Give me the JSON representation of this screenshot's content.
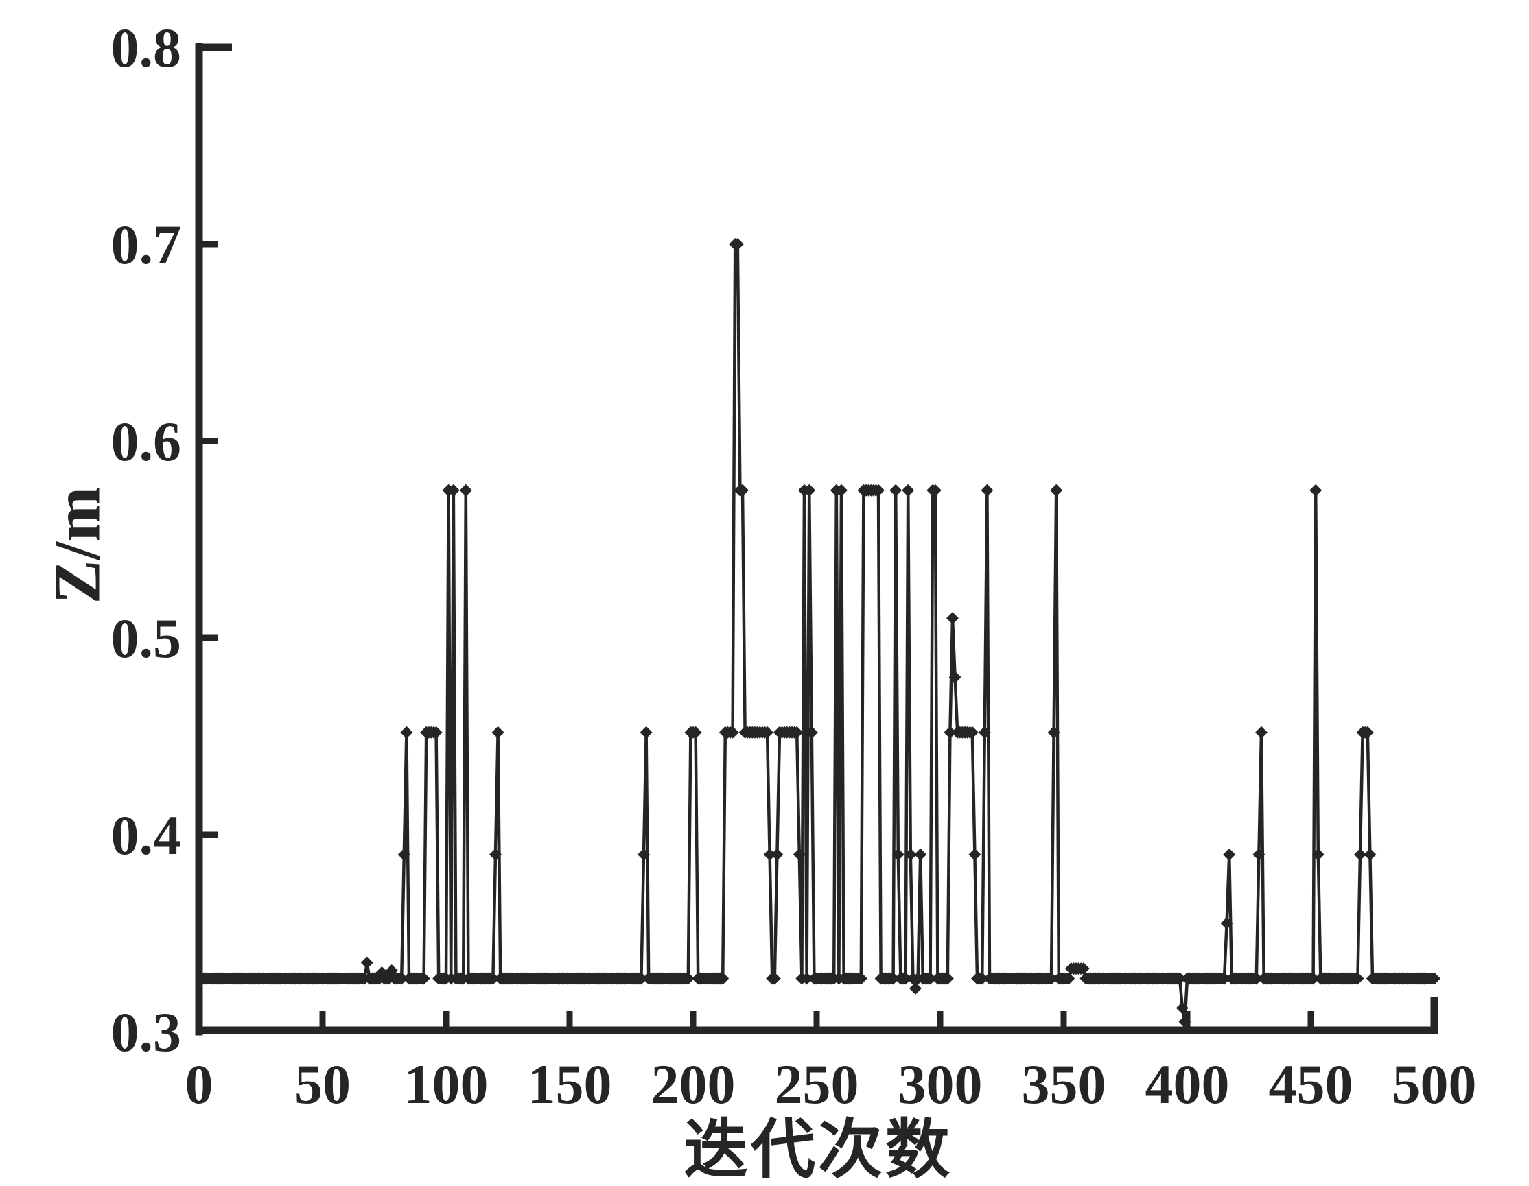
{
  "window": {
    "background": "#ffffff",
    "ink": "#252525"
  },
  "chart_data": {
    "type": "line",
    "title": "",
    "xlabel": "迭代次数",
    "ylabel": "Z/m",
    "xlim": [
      0,
      500
    ],
    "ylim": [
      0.3,
      0.8
    ],
    "xticks": [
      0,
      50,
      100,
      150,
      200,
      250,
      300,
      350,
      400,
      450,
      500
    ],
    "yticks": [
      0.3,
      0.4,
      0.5,
      0.6,
      0.7,
      0.8
    ],
    "grid": false,
    "legend": "none",
    "marker": "diamond",
    "line_color": "#252525",
    "x_start": 1,
    "x_end": 500,
    "baseline_value": 0.327,
    "segments": [
      {
        "from": 68,
        "to": 68,
        "value": 0.335
      },
      {
        "from": 74,
        "to": 74,
        "value": 0.33
      },
      {
        "from": 78,
        "to": 78,
        "value": 0.331
      },
      {
        "from": 83,
        "to": 83,
        "value": 0.39
      },
      {
        "from": 84,
        "to": 84,
        "value": 0.452
      },
      {
        "from": 92,
        "to": 96,
        "value": 0.452
      },
      {
        "from": 101,
        "to": 101,
        "value": 0.575
      },
      {
        "from": 103,
        "to": 103,
        "value": 0.575
      },
      {
        "from": 108,
        "to": 108,
        "value": 0.575
      },
      {
        "from": 120,
        "to": 120,
        "value": 0.39
      },
      {
        "from": 121,
        "to": 121,
        "value": 0.452
      },
      {
        "from": 180,
        "to": 180,
        "value": 0.39
      },
      {
        "from": 181,
        "to": 181,
        "value": 0.452
      },
      {
        "from": 199,
        "to": 201,
        "value": 0.452
      },
      {
        "from": 213,
        "to": 216,
        "value": 0.452
      },
      {
        "from": 217,
        "to": 218,
        "value": 0.7
      },
      {
        "from": 219,
        "to": 220,
        "value": 0.575
      },
      {
        "from": 221,
        "to": 230,
        "value": 0.452
      },
      {
        "from": 231,
        "to": 231,
        "value": 0.39
      },
      {
        "from": 234,
        "to": 234,
        "value": 0.39
      },
      {
        "from": 235,
        "to": 242,
        "value": 0.452
      },
      {
        "from": 243,
        "to": 243,
        "value": 0.39
      },
      {
        "from": 245,
        "to": 245,
        "value": 0.575
      },
      {
        "from": 247,
        "to": 247,
        "value": 0.575
      },
      {
        "from": 248,
        "to": 248,
        "value": 0.452
      },
      {
        "from": 258,
        "to": 258,
        "value": 0.575
      },
      {
        "from": 260,
        "to": 260,
        "value": 0.575
      },
      {
        "from": 269,
        "to": 275,
        "value": 0.575
      },
      {
        "from": 282,
        "to": 282,
        "value": 0.575
      },
      {
        "from": 283,
        "to": 283,
        "value": 0.39
      },
      {
        "from": 287,
        "to": 287,
        "value": 0.575
      },
      {
        "from": 288,
        "to": 288,
        "value": 0.39
      },
      {
        "from": 290,
        "to": 290,
        "value": 0.322
      },
      {
        "from": 292,
        "to": 292,
        "value": 0.39
      },
      {
        "from": 297,
        "to": 298,
        "value": 0.575
      },
      {
        "from": 304,
        "to": 304,
        "value": 0.452
      },
      {
        "from": 305,
        "to": 305,
        "value": 0.51
      },
      {
        "from": 306,
        "to": 306,
        "value": 0.48
      },
      {
        "from": 307,
        "to": 313,
        "value": 0.452
      },
      {
        "from": 314,
        "to": 314,
        "value": 0.39
      },
      {
        "from": 318,
        "to": 318,
        "value": 0.452
      },
      {
        "from": 319,
        "to": 319,
        "value": 0.575
      },
      {
        "from": 346,
        "to": 346,
        "value": 0.452
      },
      {
        "from": 347,
        "to": 347,
        "value": 0.575
      },
      {
        "from": 353,
        "to": 358,
        "value": 0.332
      },
      {
        "from": 398,
        "to": 398,
        "value": 0.312
      },
      {
        "from": 399,
        "to": 399,
        "value": 0.305
      },
      {
        "from": 416,
        "to": 416,
        "value": 0.355
      },
      {
        "from": 417,
        "to": 417,
        "value": 0.39
      },
      {
        "from": 429,
        "to": 429,
        "value": 0.39
      },
      {
        "from": 430,
        "to": 430,
        "value": 0.452
      },
      {
        "from": 452,
        "to": 452,
        "value": 0.575
      },
      {
        "from": 453,
        "to": 453,
        "value": 0.39
      },
      {
        "from": 470,
        "to": 470,
        "value": 0.39
      },
      {
        "from": 471,
        "to": 473,
        "value": 0.452
      },
      {
        "from": 474,
        "to": 474,
        "value": 0.39
      }
    ]
  }
}
